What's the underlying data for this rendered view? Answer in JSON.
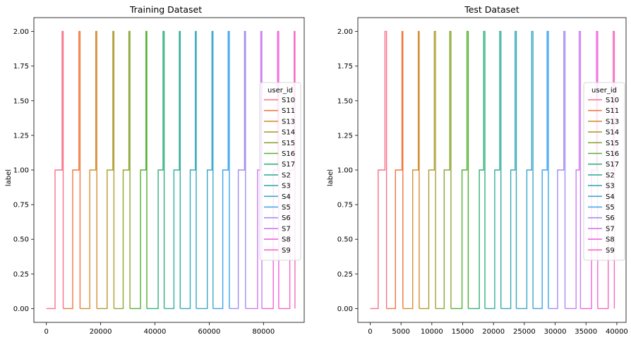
{
  "chart_data": [
    {
      "type": "line",
      "title": "Training Dataset",
      "xlabel": "",
      "ylabel": "label",
      "xlim": [
        -4600,
        95000
      ],
      "ylim": [
        -0.1,
        2.1
      ],
      "xticks": [
        0,
        20000,
        40000,
        60000,
        80000
      ],
      "yticks": [
        0.0,
        0.25,
        0.5,
        0.75,
        1.0,
        1.25,
        1.5,
        1.75,
        2.0
      ],
      "ytick_labels": [
        "0.00",
        "0.25",
        "0.50",
        "0.75",
        "1.00",
        "1.25",
        "1.50",
        "1.75",
        "2.00"
      ],
      "grid": false,
      "legend": {
        "title": "user_id",
        "placement": "center-right"
      },
      "series": [
        {
          "name": "S10",
          "color": "#f77189",
          "start": 0,
          "step1": 3200,
          "step2": 5800,
          "end": 6200
        },
        {
          "name": "S11",
          "color": "#f0773f",
          "start": 6200,
          "step1": 9700,
          "step2": 12000,
          "end": 12400
        },
        {
          "name": "S13",
          "color": "#d48f35",
          "start": 12400,
          "step1": 16000,
          "step2": 18200,
          "end": 18600
        },
        {
          "name": "S14",
          "color": "#ae9d31",
          "start": 18600,
          "step1": 22400,
          "step2": 24500,
          "end": 24900
        },
        {
          "name": "S15",
          "color": "#8ba731",
          "start": 24900,
          "step1": 28300,
          "step2": 30400,
          "end": 30800
        },
        {
          "name": "S16",
          "color": "#50b131",
          "start": 30800,
          "step1": 34700,
          "step2": 36700,
          "end": 37000
        },
        {
          "name": "S17",
          "color": "#33b07a",
          "start": 37000,
          "step1": 41200,
          "step2": 43000,
          "end": 43400
        },
        {
          "name": "S2",
          "color": "#35ad9c",
          "start": 43400,
          "step1": 47000,
          "step2": 49000,
          "end": 49300
        },
        {
          "name": "S3",
          "color": "#37abb5",
          "start": 49300,
          "step1": 53000,
          "step2": 54900,
          "end": 55200
        },
        {
          "name": "S4",
          "color": "#3aa8c8",
          "start": 55200,
          "step1": 59300,
          "step2": 61000,
          "end": 61400
        },
        {
          "name": "S5",
          "color": "#3ba3ec",
          "start": 61400,
          "step1": 65000,
          "step2": 67000,
          "end": 67400
        },
        {
          "name": "S6",
          "color": "#a48cf4",
          "start": 67400,
          "step1": 70700,
          "step2": 73000,
          "end": 73400
        },
        {
          "name": "S7",
          "color": "#cc7af4",
          "start": 73400,
          "step1": 77800,
          "step2": 79000,
          "end": 79400
        },
        {
          "name": "S8",
          "color": "#f461dd",
          "start": 79400,
          "step1": 83600,
          "step2": 85200,
          "end": 85600
        },
        {
          "name": "S9",
          "color": "#f668c2",
          "start": 85600,
          "step1": 89700,
          "step2": 91300,
          "end": 91600
        }
      ]
    },
    {
      "type": "line",
      "title": "Test Dataset",
      "xlabel": "",
      "ylabel": "label",
      "xlim": [
        -2000,
        41500
      ],
      "ylim": [
        -0.1,
        2.1
      ],
      "xticks": [
        0,
        5000,
        10000,
        15000,
        20000,
        25000,
        30000,
        35000,
        40000
      ],
      "yticks": [
        0.0,
        0.25,
        0.5,
        0.75,
        1.0,
        1.25,
        1.5,
        1.75,
        2.0
      ],
      "ytick_labels": [
        "0.00",
        "0.25",
        "0.50",
        "0.75",
        "1.00",
        "1.25",
        "1.50",
        "1.75",
        "2.00"
      ],
      "grid": false,
      "legend": {
        "title": "user_id",
        "placement": "center-right"
      },
      "series": [
        {
          "name": "S10",
          "color": "#f77189",
          "start": 0,
          "step1": 1300,
          "step2": 2400,
          "end": 2650
        },
        {
          "name": "S11",
          "color": "#f0773f",
          "start": 2650,
          "step1": 4100,
          "step2": 5150,
          "end": 5300
        },
        {
          "name": "S13",
          "color": "#d48f35",
          "start": 5300,
          "step1": 6900,
          "step2": 7800,
          "end": 7950
        },
        {
          "name": "S14",
          "color": "#ae9d31",
          "start": 7950,
          "step1": 9500,
          "step2": 10400,
          "end": 10600
        },
        {
          "name": "S15",
          "color": "#8ba731",
          "start": 10600,
          "step1": 12000,
          "step2": 12900,
          "end": 13100
        },
        {
          "name": "S16",
          "color": "#50b131",
          "start": 13100,
          "step1": 14900,
          "step2": 15700,
          "end": 15900
        },
        {
          "name": "S17",
          "color": "#33b07a",
          "start": 15900,
          "step1": 17700,
          "step2": 18400,
          "end": 18600
        },
        {
          "name": "S2",
          "color": "#35ad9c",
          "start": 18600,
          "step1": 20200,
          "step2": 21000,
          "end": 21200
        },
        {
          "name": "S3",
          "color": "#37abb5",
          "start": 21200,
          "step1": 22800,
          "step2": 23500,
          "end": 23700
        },
        {
          "name": "S4",
          "color": "#3aa8c8",
          "start": 23700,
          "step1": 25400,
          "step2": 26200,
          "end": 26400
        },
        {
          "name": "S5",
          "color": "#3ba3ec",
          "start": 26400,
          "step1": 27900,
          "step2": 28700,
          "end": 28900
        },
        {
          "name": "S6",
          "color": "#a48cf4",
          "start": 28900,
          "step1": 30400,
          "step2": 31400,
          "end": 31600
        },
        {
          "name": "S7",
          "color": "#cc7af4",
          "start": 31600,
          "step1": 33400,
          "step2": 33900,
          "end": 34100
        },
        {
          "name": "S8",
          "color": "#f461dd",
          "start": 34100,
          "step1": 35900,
          "step2": 36700,
          "end": 36900
        },
        {
          "name": "S9",
          "color": "#f668c2",
          "start": 36900,
          "step1": 38600,
          "step2": 39400,
          "end": 39600
        }
      ]
    }
  ]
}
